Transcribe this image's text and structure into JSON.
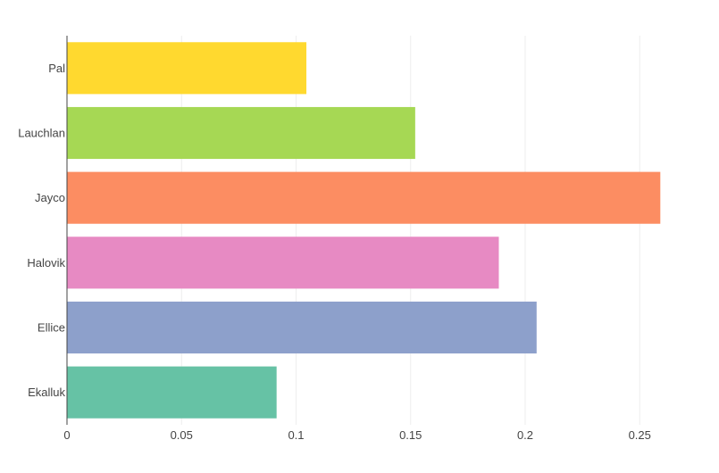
{
  "chart_data": {
    "type": "bar",
    "orientation": "horizontal",
    "title": "",
    "xlabel": "",
    "ylabel": "",
    "categories": [
      "Ekalluk",
      "Ellice",
      "Halovik",
      "Jayco",
      "Lauchlan",
      "Pal"
    ],
    "values": [
      0.0915,
      0.205,
      0.1885,
      0.259,
      0.152,
      0.1045
    ],
    "colors": [
      "#66c2a5",
      "#8da0cb",
      "#e78ac3",
      "#fc8d62",
      "#a6d854",
      "#ffd92f"
    ],
    "xlim": [
      0,
      0.262
    ],
    "xticks": [
      0,
      0.05,
      0.1,
      0.15,
      0.2,
      0.25
    ],
    "xtick_labels": [
      "0",
      "0.05",
      "0.1",
      "0.15",
      "0.2",
      "0.25"
    ],
    "grid": "vertical",
    "legend": "none"
  }
}
